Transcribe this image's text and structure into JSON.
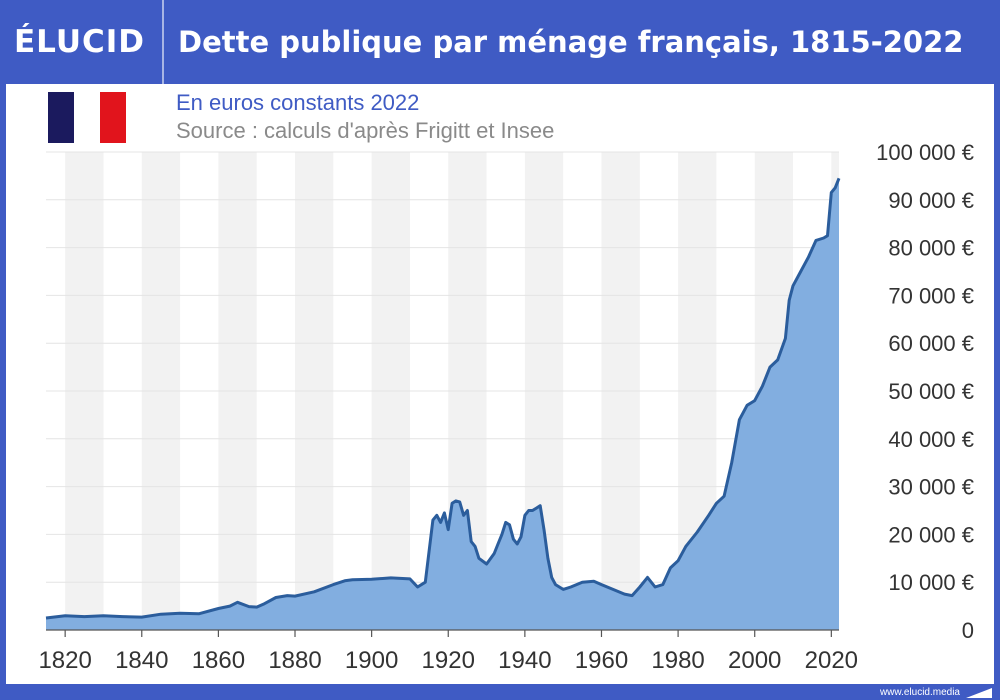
{
  "header": {
    "logo_text": "ÉLUCID",
    "title": "Dette publique par ménage français, 1815-2022"
  },
  "subtitle": "En euros constants 2022",
  "source": "Source : calculs d'après Frigitt et Insee",
  "footer": {
    "url": "www.elucid.media"
  },
  "colors": {
    "header_bg": "#3f5bc4",
    "area_fill": "#82aee0",
    "line": "#2b5d9c",
    "band": "#f2f2f2",
    "flag_blue": "#1b1a5e",
    "flag_white": "#ffffff",
    "flag_red": "#e1141c"
  },
  "chart_data": {
    "type": "area",
    "title": "Dette publique par ménage français, 1815-2022",
    "subtitle": "En euros constants 2022",
    "xlabel": "",
    "ylabel": "",
    "xlim": [
      1815,
      2022
    ],
    "ylim": [
      0,
      100000
    ],
    "x_ticks": [
      "1820",
      "1840",
      "1860",
      "1880",
      "1900",
      "1920",
      "1940",
      "1960",
      "1980",
      "2000",
      "2020"
    ],
    "y_ticks": [
      "0",
      "10 000 €",
      "20 000 €",
      "30 000 €",
      "40 000 €",
      "50 000 €",
      "60 000 €",
      "70 000 €",
      "80 000 €",
      "90 000 €",
      "100 000 €"
    ],
    "grid": "alternating vertical bands every 10 years, horizontal gridlines",
    "series": [
      {
        "points": [
          [
            1815,
            2500
          ],
          [
            1820,
            3000
          ],
          [
            1825,
            2800
          ],
          [
            1830,
            3000
          ],
          [
            1835,
            2800
          ],
          [
            1840,
            2700
          ],
          [
            1845,
            3300
          ],
          [
            1850,
            3500
          ],
          [
            1855,
            3400
          ],
          [
            1860,
            4500
          ],
          [
            1863,
            5000
          ],
          [
            1865,
            5800
          ],
          [
            1868,
            4900
          ],
          [
            1870,
            4800
          ],
          [
            1872,
            5500
          ],
          [
            1875,
            6800
          ],
          [
            1878,
            7200
          ],
          [
            1880,
            7100
          ],
          [
            1885,
            8000
          ],
          [
            1890,
            9500
          ],
          [
            1893,
            10300
          ],
          [
            1895,
            10500
          ],
          [
            1900,
            10600
          ],
          [
            1905,
            10900
          ],
          [
            1910,
            10700
          ],
          [
            1912,
            9000
          ],
          [
            1914,
            10000
          ],
          [
            1916,
            23000
          ],
          [
            1917,
            24000
          ],
          [
            1918,
            22500
          ],
          [
            1919,
            24500
          ],
          [
            1920,
            21000
          ],
          [
            1921,
            26500
          ],
          [
            1922,
            27000
          ],
          [
            1923,
            26800
          ],
          [
            1924,
            24000
          ],
          [
            1925,
            25000
          ],
          [
            1926,
            18500
          ],
          [
            1927,
            17500
          ],
          [
            1928,
            15000
          ],
          [
            1930,
            13800
          ],
          [
            1932,
            16000
          ],
          [
            1933,
            18000
          ],
          [
            1934,
            20000
          ],
          [
            1935,
            22500
          ],
          [
            1936,
            22000
          ],
          [
            1937,
            19000
          ],
          [
            1938,
            18000
          ],
          [
            1939,
            19500
          ],
          [
            1940,
            24000
          ],
          [
            1941,
            25000
          ],
          [
            1942,
            25000
          ],
          [
            1943,
            25500
          ],
          [
            1944,
            26000
          ],
          [
            1945,
            21000
          ],
          [
            1946,
            15000
          ],
          [
            1947,
            11000
          ],
          [
            1948,
            9500
          ],
          [
            1950,
            8500
          ],
          [
            1952,
            9000
          ],
          [
            1955,
            10000
          ],
          [
            1958,
            10200
          ],
          [
            1960,
            9500
          ],
          [
            1963,
            8500
          ],
          [
            1966,
            7500
          ],
          [
            1968,
            7200
          ],
          [
            1970,
            9000
          ],
          [
            1972,
            11000
          ],
          [
            1974,
            9000
          ],
          [
            1976,
            9500
          ],
          [
            1978,
            13000
          ],
          [
            1980,
            14500
          ],
          [
            1982,
            17500
          ],
          [
            1985,
            20500
          ],
          [
            1988,
            24000
          ],
          [
            1990,
            26500
          ],
          [
            1992,
            28000
          ],
          [
            1994,
            35000
          ],
          [
            1996,
            44000
          ],
          [
            1998,
            47000
          ],
          [
            2000,
            48000
          ],
          [
            2002,
            51000
          ],
          [
            2004,
            55000
          ],
          [
            2006,
            56500
          ],
          [
            2008,
            61000
          ],
          [
            2009,
            69000
          ],
          [
            2010,
            72000
          ],
          [
            2012,
            75000
          ],
          [
            2014,
            78000
          ],
          [
            2016,
            81500
          ],
          [
            2018,
            82000
          ],
          [
            2019,
            82500
          ],
          [
            2020,
            91500
          ],
          [
            2021,
            92500
          ],
          [
            2022,
            94500
          ]
        ]
      }
    ]
  }
}
